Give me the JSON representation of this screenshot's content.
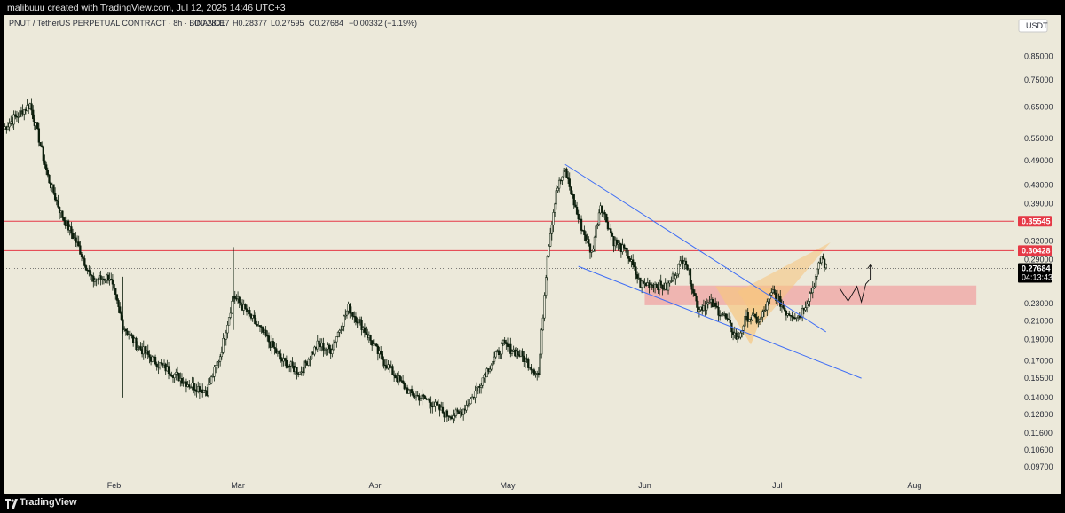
{
  "header": {
    "credit_text": "malibuuu created with TradingView.com, Jul 12, 2025 14:46 UTC+3",
    "symbol_line": "PNUT / TetherUS PERPETUAL CONTRACT · 8h · BINANCE",
    "ohlc": {
      "open": "O0.28017",
      "high": "H0.28377",
      "low": "L0.27595",
      "close": "C0.27684",
      "change": "−0.00332 (−1.19%)"
    }
  },
  "footer": {
    "brand": "TradingView"
  },
  "colors": {
    "background": "#ece9da",
    "candle": "#0b1d0b",
    "resistance_line": "#e53946",
    "channel": "#3f6ef5",
    "support_zone": "#f0a3a3",
    "pattern_fill": "#f6c682",
    "price_tag_bg": "#000000"
  },
  "chart_data": {
    "type": "candlestick",
    "timeframe": "8h",
    "yaxis": {
      "unit": "USDT",
      "scale": "log",
      "ticks": [
        "0.85000",
        "0.75000",
        "0.65000",
        "0.55000",
        "0.49000",
        "0.43000",
        "0.39000",
        "0.32000",
        "0.29000",
        "0.23000",
        "0.21000",
        "0.19000",
        "0.17000",
        "0.15500",
        "0.14000",
        "0.12800",
        "0.11600",
        "0.10600",
        "0.09700"
      ],
      "ylim": [
        0.093,
        0.94
      ]
    },
    "xaxis": {
      "ticks": [
        "Feb",
        "Mar",
        "Apr",
        "May",
        "Jun",
        "Jul",
        "Aug"
      ],
      "range": [
        "2025-01-07",
        "2025-08-23"
      ]
    },
    "close_anchors": [
      {
        "date": "2025-01-07",
        "price": 0.58
      },
      {
        "date": "2025-01-10",
        "price": 0.62
      },
      {
        "date": "2025-01-13",
        "price": 0.66
      },
      {
        "date": "2025-01-15",
        "price": 0.55
      },
      {
        "date": "2025-01-17",
        "price": 0.45
      },
      {
        "date": "2025-01-20",
        "price": 0.37
      },
      {
        "date": "2025-01-24",
        "price": 0.31
      },
      {
        "date": "2025-01-27",
        "price": 0.26
      },
      {
        "date": "2025-01-31",
        "price": 0.265
      },
      {
        "date": "2025-02-03",
        "price": 0.205
      },
      {
        "date": "2025-02-06",
        "price": 0.185
      },
      {
        "date": "2025-02-10",
        "price": 0.17
      },
      {
        "date": "2025-02-14",
        "price": 0.16
      },
      {
        "date": "2025-02-18",
        "price": 0.15
      },
      {
        "date": "2025-02-22",
        "price": 0.145
      },
      {
        "date": "2025-02-25",
        "price": 0.175
      },
      {
        "date": "2025-02-28",
        "price": 0.24
      },
      {
        "date": "2025-03-03",
        "price": 0.22
      },
      {
        "date": "2025-03-07",
        "price": 0.195
      },
      {
        "date": "2025-03-11",
        "price": 0.17
      },
      {
        "date": "2025-03-15",
        "price": 0.16
      },
      {
        "date": "2025-03-19",
        "price": 0.185
      },
      {
        "date": "2025-03-22",
        "price": 0.18
      },
      {
        "date": "2025-03-26",
        "price": 0.225
      },
      {
        "date": "2025-03-29",
        "price": 0.205
      },
      {
        "date": "2025-04-02",
        "price": 0.175
      },
      {
        "date": "2025-04-06",
        "price": 0.155
      },
      {
        "date": "2025-04-09",
        "price": 0.143
      },
      {
        "date": "2025-04-13",
        "price": 0.138
      },
      {
        "date": "2025-04-17",
        "price": 0.128
      },
      {
        "date": "2025-04-20",
        "price": 0.128
      },
      {
        "date": "2025-04-23",
        "price": 0.14
      },
      {
        "date": "2025-04-26",
        "price": 0.16
      },
      {
        "date": "2025-04-30",
        "price": 0.185
      },
      {
        "date": "2025-05-04",
        "price": 0.175
      },
      {
        "date": "2025-05-08",
        "price": 0.158
      },
      {
        "date": "2025-05-10",
        "price": 0.3
      },
      {
        "date": "2025-05-12",
        "price": 0.42
      },
      {
        "date": "2025-05-14",
        "price": 0.465
      },
      {
        "date": "2025-05-17",
        "price": 0.36
      },
      {
        "date": "2025-05-20",
        "price": 0.3
      },
      {
        "date": "2025-05-22",
        "price": 0.39
      },
      {
        "date": "2025-05-25",
        "price": 0.32
      },
      {
        "date": "2025-05-28",
        "price": 0.3
      },
      {
        "date": "2025-05-31",
        "price": 0.255
      },
      {
        "date": "2025-06-03",
        "price": 0.255
      },
      {
        "date": "2025-06-06",
        "price": 0.25
      },
      {
        "date": "2025-06-10",
        "price": 0.295
      },
      {
        "date": "2025-06-13",
        "price": 0.225
      },
      {
        "date": "2025-06-16",
        "price": 0.23
      },
      {
        "date": "2025-06-19",
        "price": 0.215
      },
      {
        "date": "2025-06-22",
        "price": 0.19
      },
      {
        "date": "2025-06-24",
        "price": 0.215
      },
      {
        "date": "2025-06-27",
        "price": 0.21
      },
      {
        "date": "2025-06-30",
        "price": 0.245
      },
      {
        "date": "2025-07-03",
        "price": 0.22
      },
      {
        "date": "2025-07-06",
        "price": 0.215
      },
      {
        "date": "2025-07-09",
        "price": 0.25
      },
      {
        "date": "2025-07-11",
        "price": 0.295
      },
      {
        "date": "2025-07-12",
        "price": 0.2768
      }
    ],
    "annotations": {
      "resistance_levels": [
        0.35545,
        0.30428
      ],
      "current_price": 0.27684,
      "countdown": "04:13:43",
      "support_zone": {
        "from": "2025-06-01",
        "to": "2025-08-15",
        "low": 0.228,
        "high": 0.253
      },
      "descending_channel": {
        "upper": [
          {
            "date": "2025-05-14",
            "price": 0.48
          },
          {
            "date": "2025-07-12",
            "price": 0.198
          }
        ],
        "lower": [
          {
            "date": "2025-05-17",
            "price": 0.28
          },
          {
            "date": "2025-07-20",
            "price": 0.155
          }
        ]
      },
      "projection_path": "dip into zone then rebound upward"
    }
  }
}
